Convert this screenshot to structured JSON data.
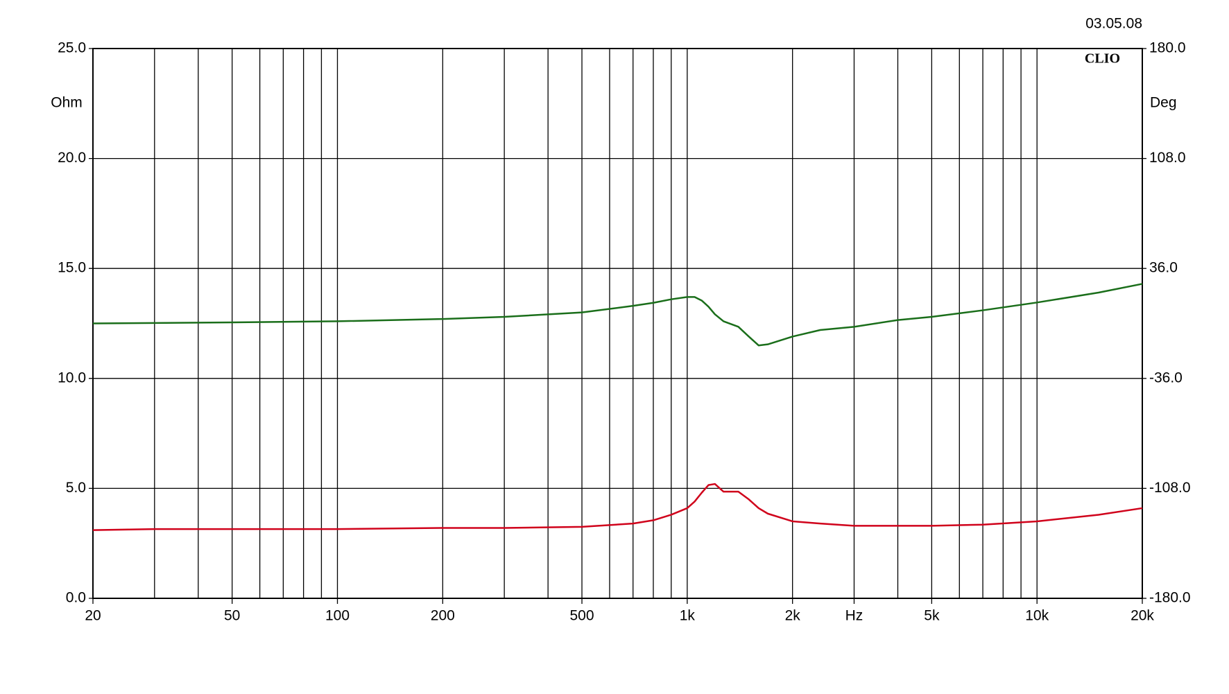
{
  "chart_data": {
    "type": "line",
    "date": "03.05.08",
    "logo": "CLIO",
    "x_scale": "log",
    "y_label": "Ohm",
    "y2_label": "Deg",
    "x": [
      20,
      30,
      50,
      100,
      200,
      300,
      500,
      700,
      800,
      900,
      1000,
      1050,
      1100,
      1150,
      1200,
      1270,
      1400,
      1500,
      1600,
      1700,
      2000,
      2400,
      3000,
      4000,
      5000,
      7000,
      10000,
      15000,
      20000
    ],
    "series": [
      {
        "color": "#d0021b",
        "values": [
          3.1,
          3.15,
          3.15,
          3.15,
          3.2,
          3.2,
          3.25,
          3.4,
          3.55,
          3.8,
          4.1,
          4.4,
          4.8,
          5.15,
          5.2,
          4.85,
          4.85,
          4.5,
          4.1,
          3.85,
          3.5,
          3.4,
          3.3,
          3.3,
          3.3,
          3.35,
          3.5,
          3.8,
          4.1
        ]
      },
      {
        "color": "#1a6e1a",
        "axis": "y2",
        "values": [
          0,
          0.3,
          0.7,
          1.4,
          2.9,
          4.3,
          7.2,
          11.5,
          13.5,
          15.8,
          17.3,
          17.3,
          15,
          11,
          6,
          1.4,
          -2.2,
          -8.6,
          -14.4,
          -13.7,
          -8.6,
          -4.3,
          -2.2,
          2.2,
          4.3,
          8.6,
          13.7,
          20.2,
          25.9
        ]
      }
    ],
    "xlim": [
      20,
      20000
    ],
    "xticks": [
      20,
      50,
      100,
      200,
      500,
      {
        "value": 1000,
        "label": "1k"
      },
      {
        "value": 2000,
        "label": "2k"
      },
      {
        "value": 3000,
        "label": "Hz"
      },
      {
        "value": 5000,
        "label": "5k"
      },
      {
        "value": 10000,
        "label": "10k"
      },
      {
        "value": 20000,
        "label": "20k"
      }
    ],
    "xgrid": [
      30,
      40,
      50,
      60,
      70,
      80,
      90,
      100,
      200,
      300,
      400,
      500,
      600,
      700,
      800,
      900,
      1000,
      2000,
      3000,
      4000,
      5000,
      6000,
      7000,
      8000,
      9000,
      10000
    ],
    "ylim": [
      0,
      25
    ],
    "yticks": [
      {
        "value": 0,
        "label": "0.0"
      },
      {
        "value": 5,
        "label": "5.0"
      },
      {
        "value": 10,
        "label": "10.0"
      },
      {
        "value": 15,
        "label": "15.0"
      },
      {
        "value": 20,
        "label": "20.0"
      },
      {
        "value": 25,
        "label": "25.0"
      }
    ],
    "y2lim": [
      -180,
      180
    ],
    "y2ticks": [
      {
        "value": -180,
        "label": "-180.0"
      },
      {
        "value": -108,
        "label": "-108.0"
      },
      {
        "value": -36,
        "label": "-36.0"
      },
      {
        "value": 36,
        "label": "36.0"
      },
      {
        "value": 108,
        "label": "108.0"
      },
      {
        "value": 180,
        "label": "180.0"
      }
    ],
    "grid": true
  }
}
